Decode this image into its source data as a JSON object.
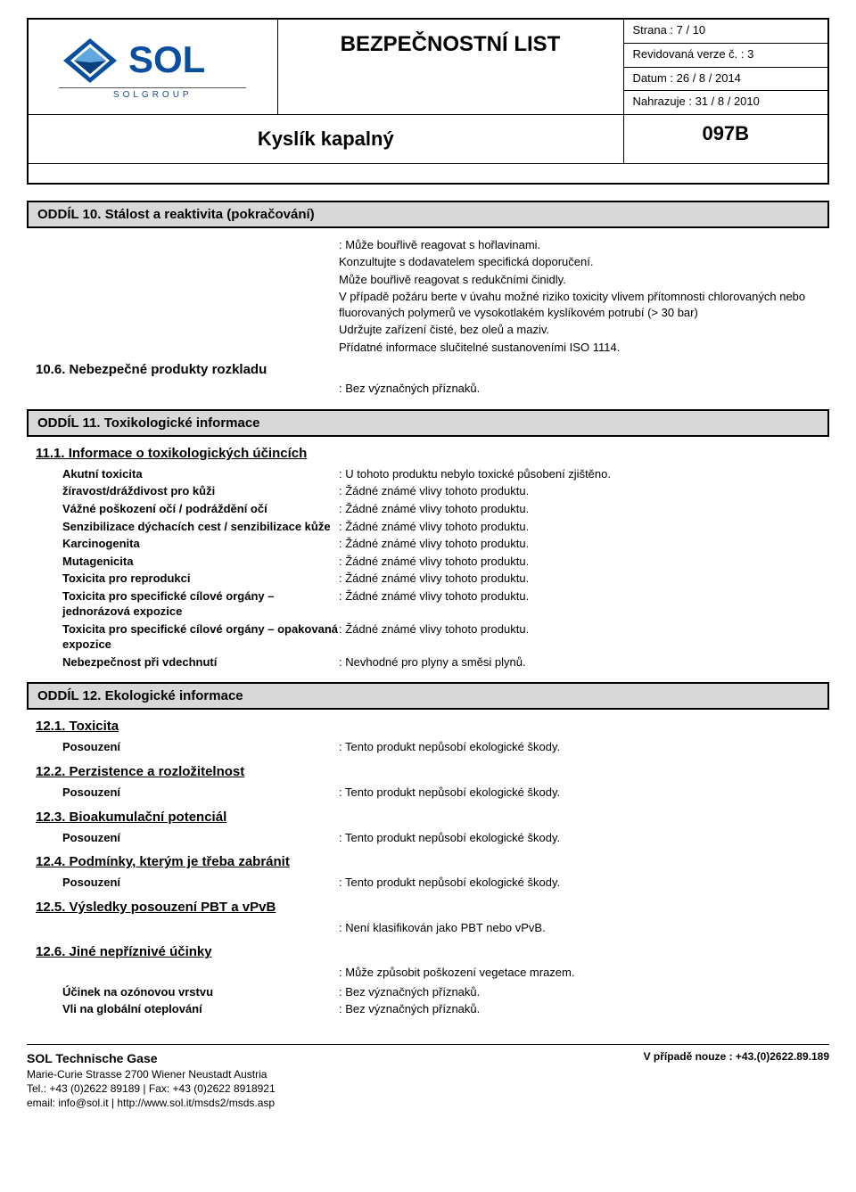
{
  "header": {
    "logo_text": "SOL",
    "logo_sub": "SOLGROUP",
    "main_title": "BEZPEČNOSTNÍ LIST",
    "sub_title": "Kyslík kapalný",
    "meta": {
      "page": "Strana : 7 / 10",
      "revision": "Revidovaná verze č. : 3",
      "date": "Datum : 26 / 8 / 2014",
      "replaces": "Nahrazuje : 31 / 8 / 2010"
    },
    "code": "097B",
    "logo_colors": {
      "diamond_outer": "#0a4f9e",
      "diamond_light": "#5fa8dd",
      "diamond_dark": "#084180",
      "text": "#0a4f9e"
    }
  },
  "section10": {
    "title": "ODDÍL 10. Stálost a reaktivita  (pokračování)",
    "paragraphs": [
      "Může bouřlivě reagovat s hořlavinami.",
      "Konzultujte s dodavatelem specifická doporučení.",
      "Může bouřlivě reagovat s redukčními činidly.",
      "V případě požáru berte v úvahu možné riziko toxicity vlivem přítomnosti chlorovaných nebo fluorovaných polymerů ve vysokotlakém kyslíkovém potrubí (> 30 bar)",
      "Udržujte zařízení čisté, bez oleů a maziv.",
      "Přídatné informace slučitelné sustanoveními ISO 1114."
    ],
    "sub_10_6": "10.6.  Nebezpečné produkty rozkladu",
    "val_10_6": "Bez význačných příznaků."
  },
  "section11": {
    "title": "ODDÍL 11. Toxikologické informace",
    "sub_11_1": "11.1.  Informace o toxikologických účincích",
    "rows": [
      {
        "label": "Akutní toxicita",
        "value": "U tohoto produktu nebylo toxické působení zjištěno."
      },
      {
        "label": "žíravost/dráždivost pro kůži",
        "value": "Žádné známé vlivy tohoto produktu."
      },
      {
        "label": "Vážné poškození očí / podráždění očí",
        "value": "Žádné známé vlivy tohoto produktu."
      },
      {
        "label": "Senzibilizace dýchacích cest / senzibilizace kůže",
        "value": "Žádné známé vlivy tohoto produktu."
      },
      {
        "label": "Karcinogenita",
        "value": "Žádné známé vlivy tohoto produktu."
      },
      {
        "label": "Mutagenicita",
        "value": "Žádné známé vlivy tohoto produktu."
      },
      {
        "label": "Toxicita pro reprodukci",
        "value": "Žádné známé vlivy tohoto produktu."
      },
      {
        "label": "Toxicita pro specifické cílové orgány – jednorázová expozice",
        "value": "Žádné známé vlivy tohoto produktu."
      },
      {
        "label": "Toxicita pro specifické cílové orgány – opakovaná expozice",
        "value": "Žádné známé vlivy tohoto produktu."
      },
      {
        "label": "Nebezpečnost při vdechnutí",
        "value": "Nevhodné pro plyny a směsi plynů."
      }
    ]
  },
  "section12": {
    "title": "ODDÍL 12. Ekologické informace",
    "sub_12_1": "12.1.  Toxicita",
    "row_12_1": {
      "label": "Posouzení",
      "value": "Tento produkt nepůsobí ekologické škody."
    },
    "sub_12_2": "12.2.  Perzistence a rozložitelnost",
    "row_12_2": {
      "label": "Posouzení",
      "value": "Tento produkt nepůsobí ekologické škody."
    },
    "sub_12_3": "12.3.  Bioakumulační potenciál",
    "row_12_3": {
      "label": "Posouzení",
      "value": "Tento produkt nepůsobí ekologické škody."
    },
    "sub_12_4": "12.4.  Podmínky, kterým je třeba zabránit",
    "row_12_4": {
      "label": "Posouzení",
      "value": "Tento produkt nepůsobí ekologické škody."
    },
    "sub_12_5": "12.5.  Výsledky posouzení PBT a vPvB",
    "val_12_5": "Není klasifikován jako PBT nebo vPvB.",
    "sub_12_6": "12.6.  Jiné nepříznivé účinky",
    "val_12_6": "Může způsobit poškození vegetace mrazem.",
    "rows_12_6": [
      {
        "label": "Účinek na ozónovou vrstvu",
        "value": "Bez význačných příznaků."
      },
      {
        "label": "Vli na globální oteplování",
        "value": "Bez význačných příznaků."
      }
    ]
  },
  "footer": {
    "company": "SOL Technische Gase",
    "address": "Marie-Curie Strasse  2700  Wiener Neustadt  Austria",
    "tel": "Tel.: +43 (0)2622 89189 | Fax: +43 (0)2622 8918921",
    "email": "email: info@sol.it | http://www.sol.it/msds2/msds.asp",
    "emergency": "V případě nouze : +43.(0)2622.89.189"
  }
}
